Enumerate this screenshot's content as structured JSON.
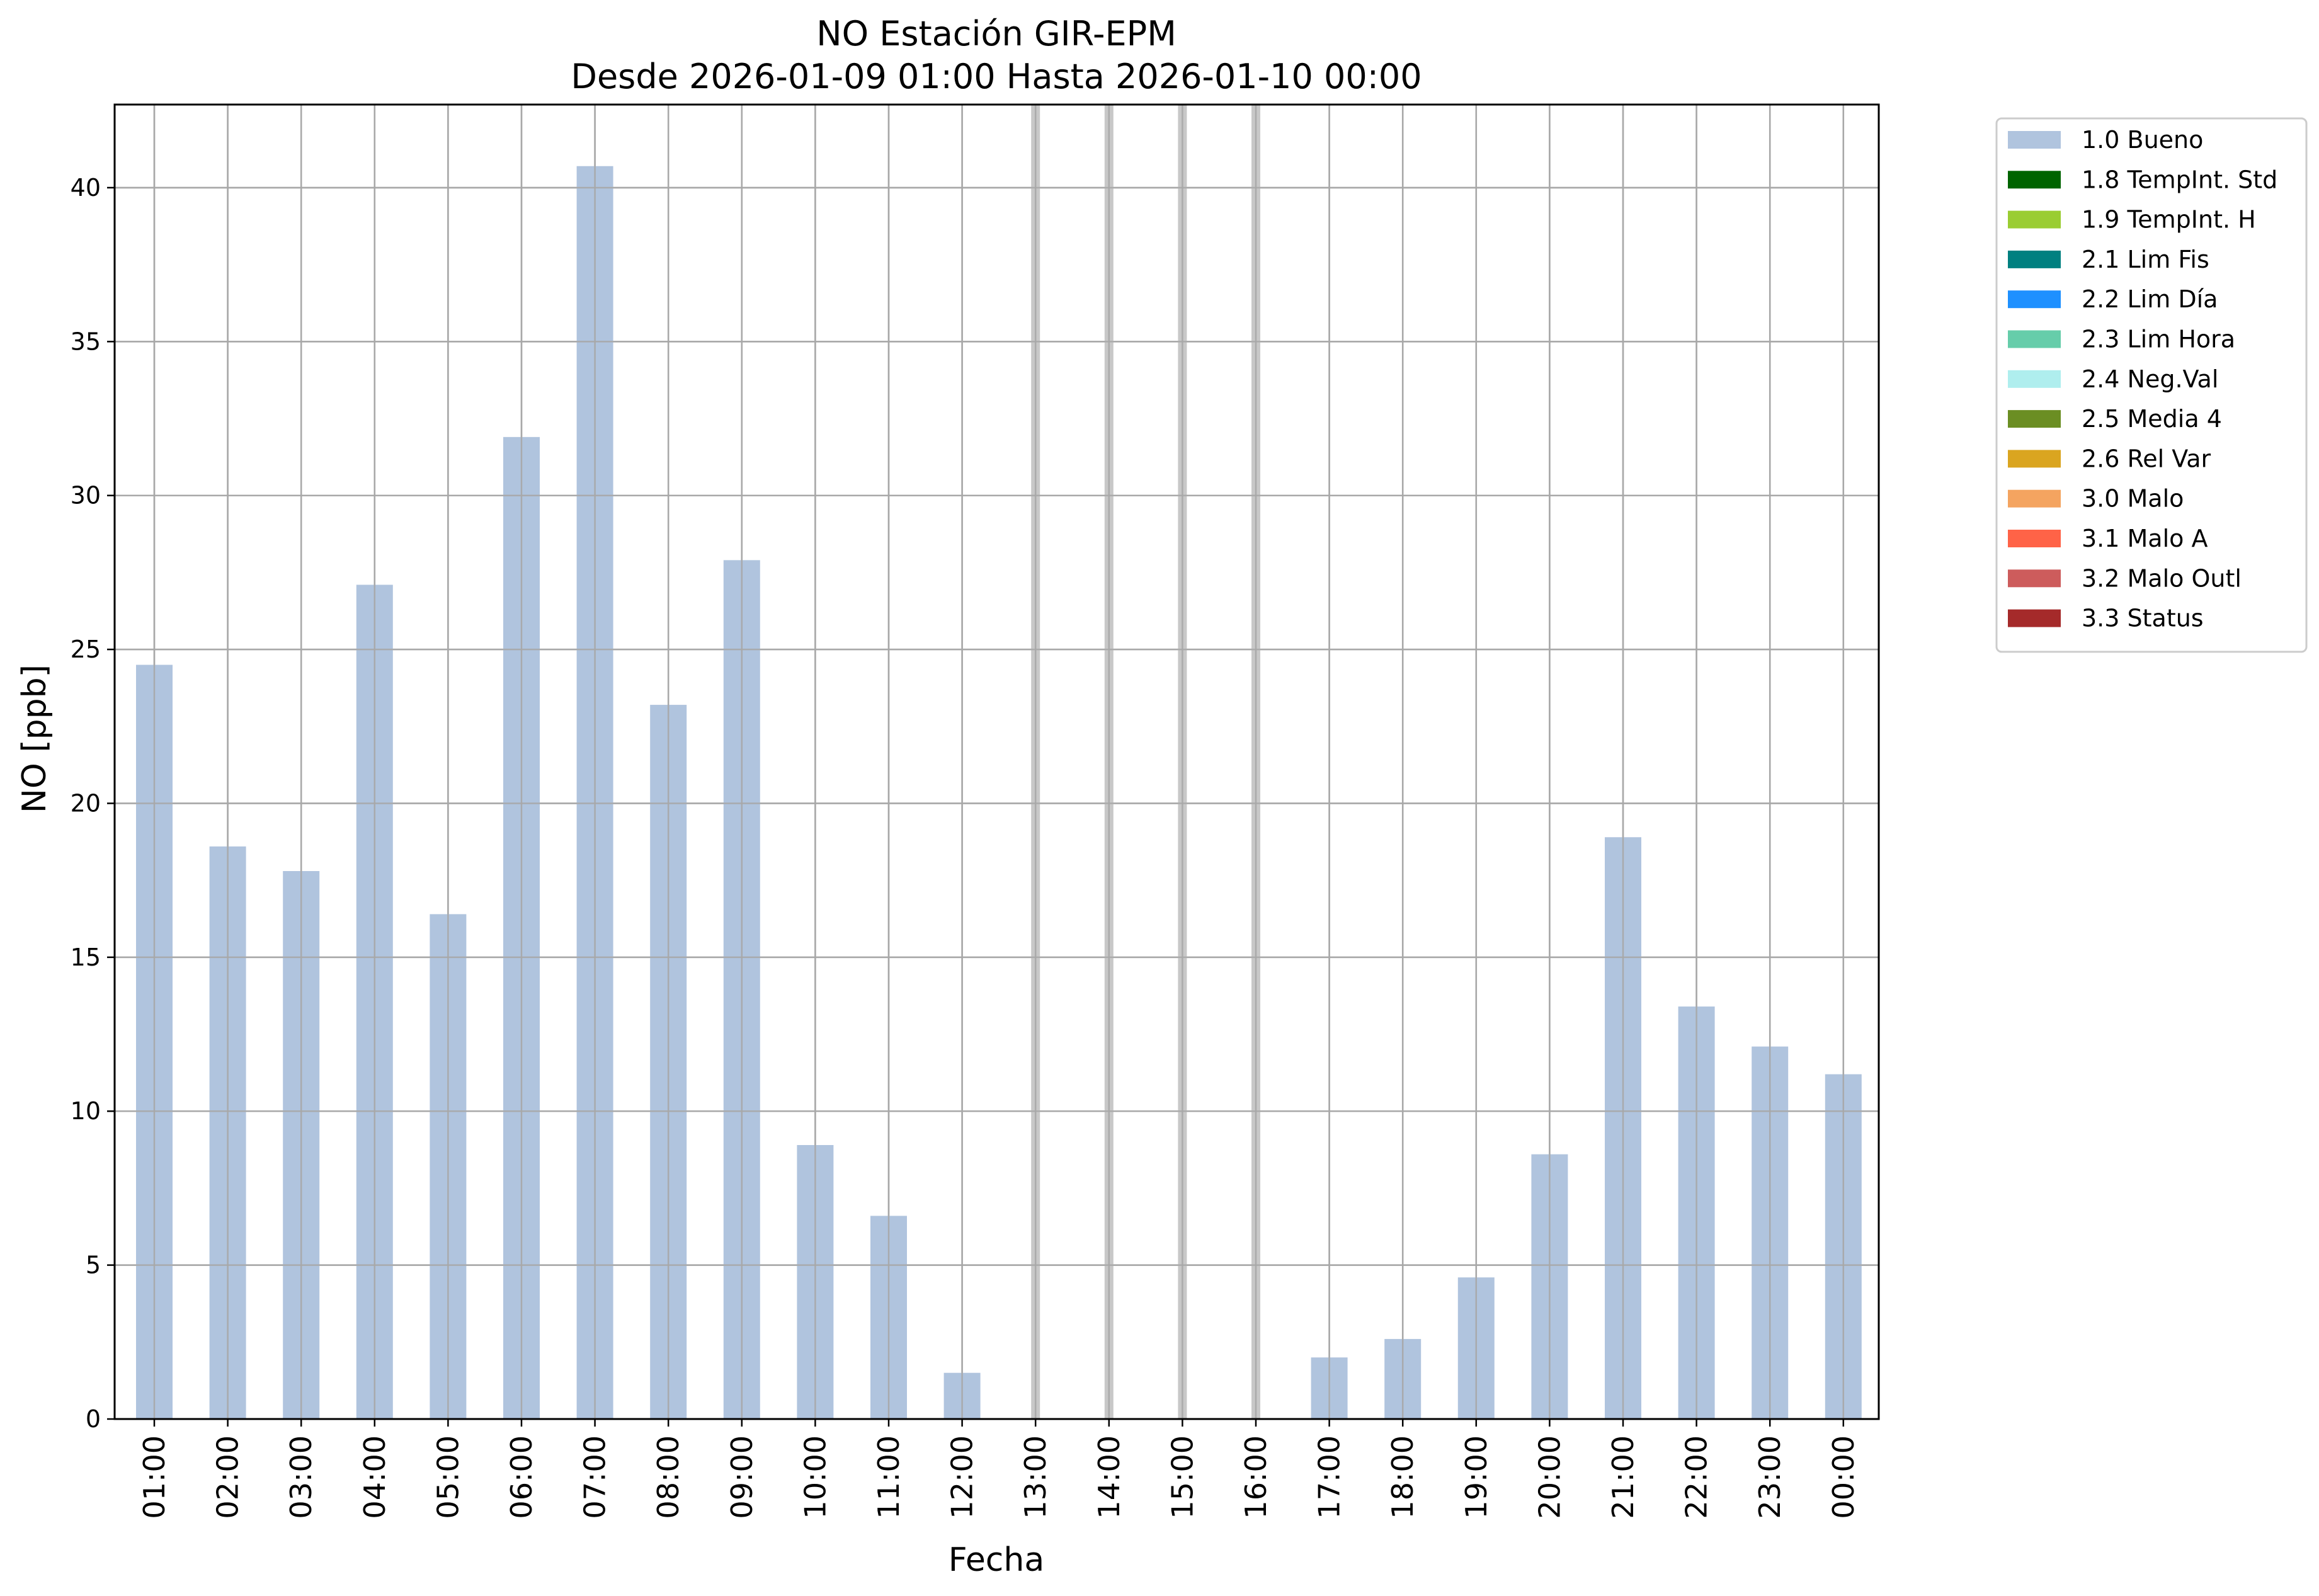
{
  "chart_data": {
    "type": "bar",
    "title": "NO Estación GIR-EPM",
    "subtitle": "Desde 2026-01-09 01:00 Hasta 2026-01-10 00:00",
    "xlabel": "Fecha",
    "ylabel": "NO [ppb]",
    "ylim": [
      0,
      42.7
    ],
    "yticks": [
      0,
      5,
      10,
      15,
      20,
      25,
      30,
      35,
      40
    ],
    "grid": true,
    "legend_position": "outside-top-right",
    "categories": [
      "01:00",
      "02:00",
      "03:00",
      "04:00",
      "05:00",
      "06:00",
      "07:00",
      "08:00",
      "09:00",
      "10:00",
      "11:00",
      "12:00",
      "13:00",
      "14:00",
      "15:00",
      "16:00",
      "17:00",
      "18:00",
      "19:00",
      "20:00",
      "21:00",
      "22:00",
      "23:00",
      "00:00"
    ],
    "series": [
      {
        "name": "1.0 Bueno",
        "color": "#b0c4de",
        "values": [
          24.5,
          18.6,
          17.8,
          27.1,
          16.4,
          31.9,
          40.7,
          23.2,
          27.9,
          8.9,
          6.6,
          1.5,
          null,
          null,
          null,
          null,
          2.0,
          2.6,
          4.6,
          8.6,
          18.9,
          13.4,
          12.1,
          11.2
        ]
      }
    ],
    "missing_markers": [
      "13:00",
      "14:00",
      "15:00",
      "16:00"
    ],
    "legend": [
      {
        "label": "1.0 Bueno",
        "color": "#b0c4de"
      },
      {
        "label": "1.8 TempInt. Std",
        "color": "#006400"
      },
      {
        "label": "1.9 TempInt. H",
        "color": "#9acd32"
      },
      {
        "label": "2.1 Lim Fis",
        "color": "#008080"
      },
      {
        "label": "2.2 Lim Día",
        "color": "#1e90ff"
      },
      {
        "label": "2.3 Lim Hora",
        "color": "#66cdaa"
      },
      {
        "label": "2.4 Neg.Val",
        "color": "#afeeee"
      },
      {
        "label": "2.5 Media 4",
        "color": "#6b8e23"
      },
      {
        "label": "2.6 Rel Var",
        "color": "#daa520"
      },
      {
        "label": "3.0 Malo",
        "color": "#f4a460"
      },
      {
        "label": "3.1 Malo A",
        "color": "#ff6347"
      },
      {
        "label": "3.2 Malo Outl",
        "color": "#cd5c5c"
      },
      {
        "label": "3.3 Status",
        "color": "#a52a2a"
      }
    ]
  }
}
